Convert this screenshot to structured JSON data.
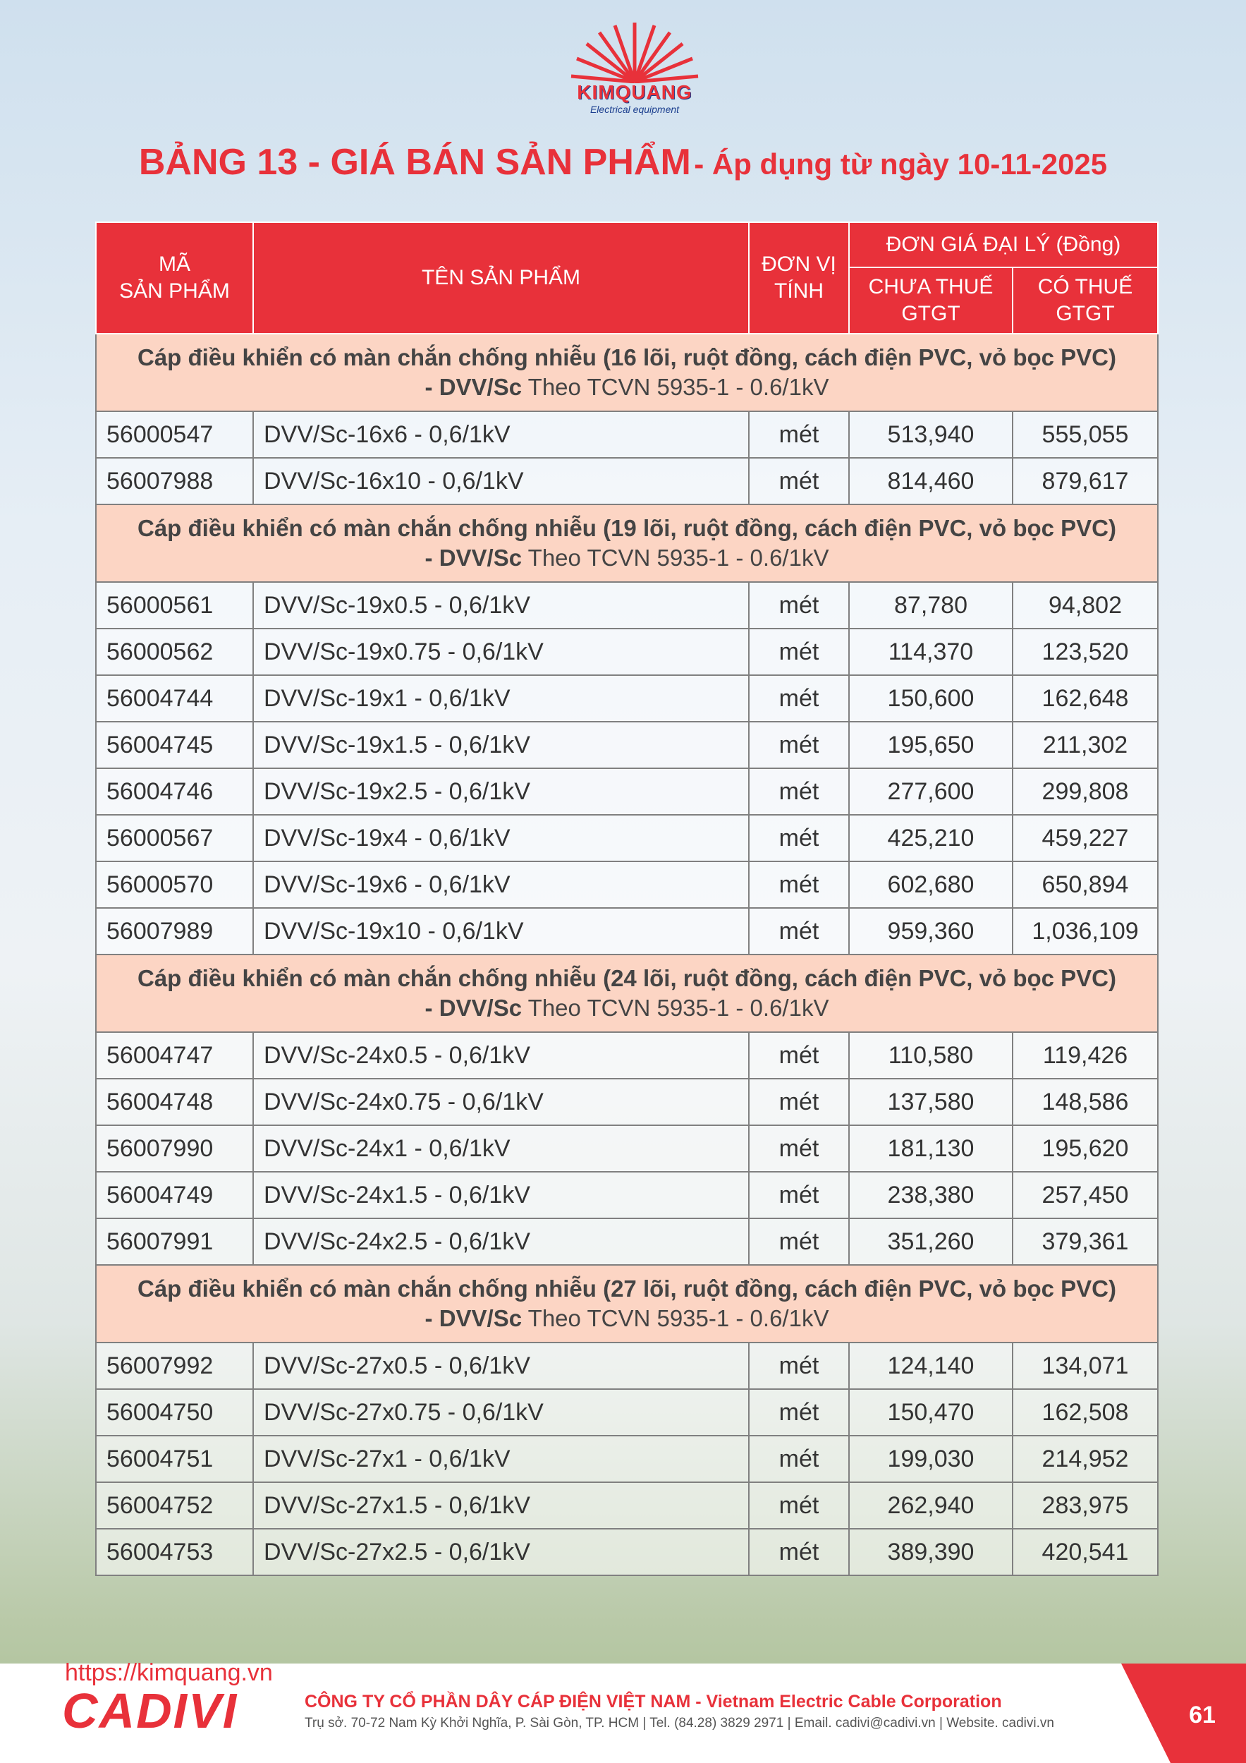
{
  "logo": {
    "brand": "KIMQUANG",
    "tagline": "Electrical equipment"
  },
  "title": {
    "main": "BẢNG 13 - GIÁ BÁN SẢN PHẨM",
    "sub": "- Áp dụng từ ngày 10-11-2025"
  },
  "table": {
    "header": {
      "code": [
        "MÃ",
        "SẢN PHẨM"
      ],
      "name": "TÊN SẢN PHẨM",
      "unit": [
        "ĐƠN VỊ",
        "TÍNH"
      ],
      "price_group": "ĐƠN GIÁ ĐẠI LÝ (Đồng)",
      "pre_tax": [
        "CHƯA THUẾ",
        "GTGT"
      ],
      "with_tax": [
        "CÓ THUẾ",
        "GTGT"
      ]
    },
    "sections": [
      {
        "title": "Cáp điều khiển có màn chắn chống nhiễu (16 lõi, ruột đồng, cách điện PVC, vỏ bọc PVC)",
        "model": "- DVV/Sc",
        "standard": "Theo TCVN 5935-1 - 0.6/1kV",
        "rows": [
          [
            "56000547",
            "DVV/Sc-16x6 - 0,6/1kV",
            "mét",
            "513,940",
            "555,055"
          ],
          [
            "56007988",
            "DVV/Sc-16x10 - 0,6/1kV",
            "mét",
            "814,460",
            "879,617"
          ]
        ]
      },
      {
        "title": "Cáp điều khiển có màn chắn chống nhiễu (19 lõi, ruột đồng, cách điện PVC, vỏ bọc PVC)",
        "model": "- DVV/Sc",
        "standard": "Theo TCVN 5935-1 - 0.6/1kV",
        "rows": [
          [
            "56000561",
            "DVV/Sc-19x0.5 - 0,6/1kV",
            "mét",
            "87,780",
            "94,802"
          ],
          [
            "56000562",
            "DVV/Sc-19x0.75 - 0,6/1kV",
            "mét",
            "114,370",
            "123,520"
          ],
          [
            "56004744",
            "DVV/Sc-19x1 - 0,6/1kV",
            "mét",
            "150,600",
            "162,648"
          ],
          [
            "56004745",
            "DVV/Sc-19x1.5 - 0,6/1kV",
            "mét",
            "195,650",
            "211,302"
          ],
          [
            "56004746",
            "DVV/Sc-19x2.5 - 0,6/1kV",
            "mét",
            "277,600",
            "299,808"
          ],
          [
            "56000567",
            "DVV/Sc-19x4 - 0,6/1kV",
            "mét",
            "425,210",
            "459,227"
          ],
          [
            "56000570",
            "DVV/Sc-19x6 - 0,6/1kV",
            "mét",
            "602,680",
            "650,894"
          ],
          [
            "56007989",
            "DVV/Sc-19x10 - 0,6/1kV",
            "mét",
            "959,360",
            "1,036,109"
          ]
        ]
      },
      {
        "title": "Cáp điều khiển có màn chắn chống nhiễu (24 lõi, ruột đồng, cách điện PVC, vỏ bọc PVC)",
        "model": "- DVV/Sc",
        "standard": "Theo TCVN 5935-1 - 0.6/1kV",
        "rows": [
          [
            "56004747",
            "DVV/Sc-24x0.5 - 0,6/1kV",
            "mét",
            "110,580",
            "119,426"
          ],
          [
            "56004748",
            "DVV/Sc-24x0.75 - 0,6/1kV",
            "mét",
            "137,580",
            "148,586"
          ],
          [
            "56007990",
            "DVV/Sc-24x1 - 0,6/1kV",
            "mét",
            "181,130",
            "195,620"
          ],
          [
            "56004749",
            "DVV/Sc-24x1.5 - 0,6/1kV",
            "mét",
            "238,380",
            "257,450"
          ],
          [
            "56007991",
            "DVV/Sc-24x2.5 - 0,6/1kV",
            "mét",
            "351,260",
            "379,361"
          ]
        ]
      },
      {
        "title": "Cáp điều khiển có màn chắn chống nhiễu (27 lõi, ruột đồng, cách điện PVC, vỏ bọc PVC)",
        "model": "- DVV/Sc",
        "standard": "Theo TCVN 5935-1 - 0.6/1kV",
        "rows": [
          [
            "56007992",
            "DVV/Sc-27x0.5 - 0,6/1kV",
            "mét",
            "124,140",
            "134,071"
          ],
          [
            "56004750",
            "DVV/Sc-27x0.75 - 0,6/1kV",
            "mét",
            "150,470",
            "162,508"
          ],
          [
            "56004751",
            "DVV/Sc-27x1 - 0,6/1kV",
            "mét",
            "199,030",
            "214,952"
          ],
          [
            "56004752",
            "DVV/Sc-27x1.5 - 0,6/1kV",
            "mét",
            "262,940",
            "283,975"
          ],
          [
            "56004753",
            "DVV/Sc-27x2.5 - 0,6/1kV",
            "mét",
            "389,390",
            "420,541"
          ]
        ]
      }
    ]
  },
  "footer": {
    "url": "https://kimquang.vn",
    "brand": "CADIVI",
    "company": "CÔNG TY CỔ PHẦN DÂY CÁP ĐIỆN VIỆT NAM - Vietnam Electric Cable Corporation",
    "address": "Trụ sở. 70-72 Nam Kỳ Khởi Nghĩa, P. Sài Gòn, TP. HCM | Tel. (84.28) 3829 2971 | Email. cadivi@cadivi.vn | Website. cadivi.vn",
    "page": "61"
  }
}
